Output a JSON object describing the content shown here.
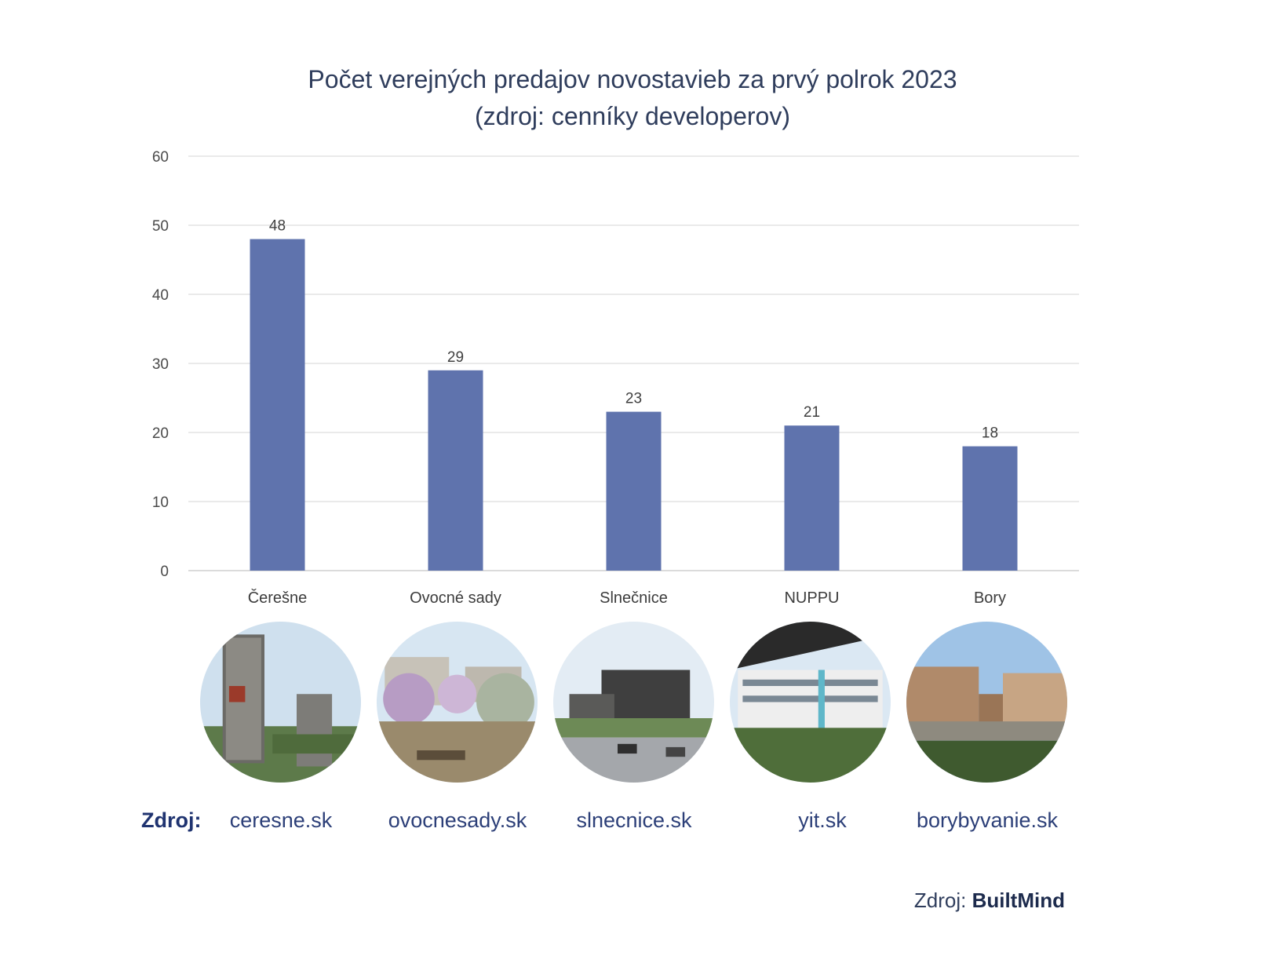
{
  "title_line1": "Počet verejných predajov novostavieb za prvý polrok 2023",
  "title_line2": "(zdroj: cenníky developerov)",
  "chart_data": {
    "type": "bar",
    "categories": [
      "Čerešne",
      "Ovocné sady",
      "Slnečnice",
      "NUPPU",
      "Bory"
    ],
    "values": [
      48,
      29,
      23,
      21,
      18
    ],
    "ylim": [
      0,
      60
    ],
    "yticks": [
      0,
      10,
      20,
      30,
      40,
      50,
      60
    ],
    "grid": true,
    "bar_color": "#5f73ad"
  },
  "sources": {
    "prefix": "Zdroj:",
    "links": [
      "ceresne.sk",
      "ovocnesady.sk",
      "slnecnice.sk",
      "yit.sk",
      "borybyvanie.sk"
    ]
  },
  "footer": {
    "prefix": "Zdroj:",
    "brand": "BuiltMind"
  }
}
